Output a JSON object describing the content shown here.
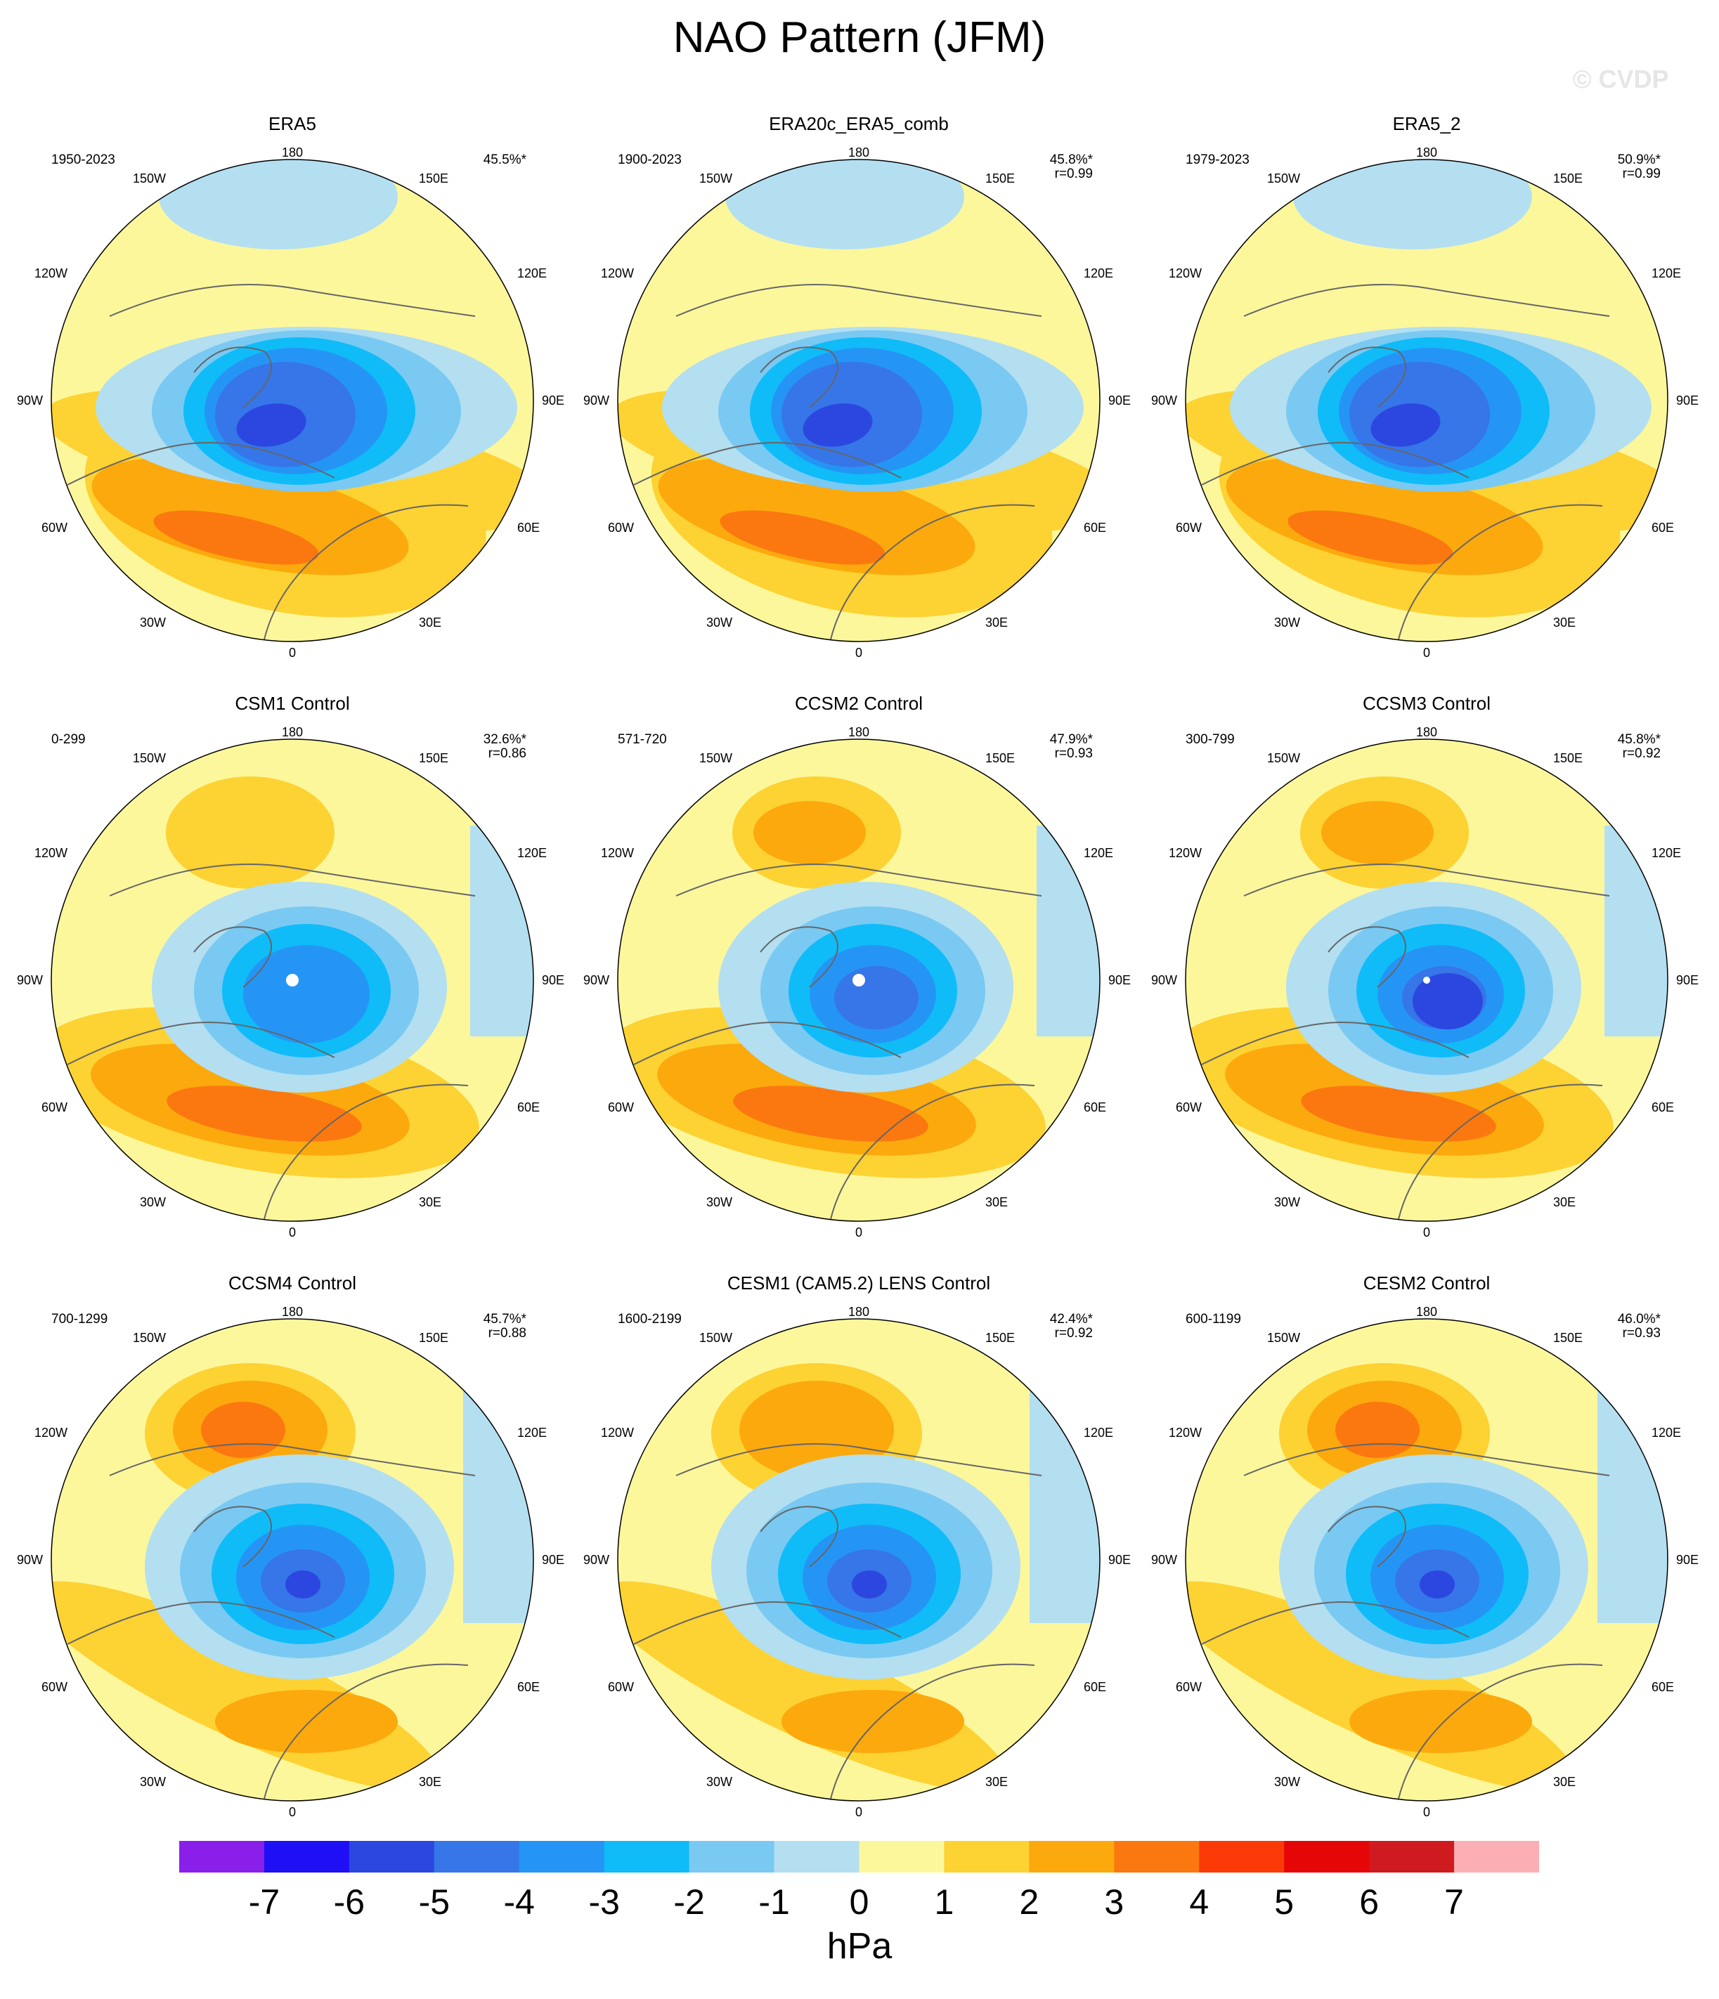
{
  "figure": {
    "title": "NAO Pattern (JFM)",
    "copyright": "© CVDP",
    "units": "hPa"
  },
  "colors": {
    "land_outline": "#666666",
    "circle_edge": "#000000",
    "dot": "#ffffff"
  },
  "lon_labels": {
    "top": "180",
    "bottom": "0",
    "left": "90W",
    "right": "90E",
    "upper_left_1": "150W",
    "upper_left_2": "120W",
    "lower_left_1": "60W",
    "lower_left_2": "30W",
    "upper_right_1": "150E",
    "upper_right_2": "120E",
    "lower_right_1": "60E",
    "lower_right_2": "30E"
  },
  "panels": [
    {
      "title": "ERA5",
      "years": "1950-2023",
      "pct": "45.5%*",
      "r": "",
      "variant": 0
    },
    {
      "title": "ERA20c_ERA5_comb",
      "years": "1900-2023",
      "pct": "45.8%*",
      "r": "r=0.99",
      "variant": 0
    },
    {
      "title": "ERA5_2",
      "years": "1979-2023",
      "pct": "50.9%*",
      "r": "r=0.99",
      "variant": 0
    },
    {
      "title": "CSM1 Control",
      "years": "0-299",
      "pct": "32.6%*",
      "r": "r=0.86",
      "variant": 1
    },
    {
      "title": "CCSM2 Control",
      "years": "571-720",
      "pct": "47.9%*",
      "r": "r=0.93",
      "variant": 1
    },
    {
      "title": "CCSM3 Control",
      "years": "300-799",
      "pct": "45.8%*",
      "r": "r=0.92",
      "variant": 1
    },
    {
      "title": "CCSM4 Control",
      "years": "700-1299",
      "pct": "45.7%*",
      "r": "r=0.88",
      "variant": 2
    },
    {
      "title": "CESM1 (CAM5.2) LENS Control",
      "years": "1600-2199",
      "pct": "42.4%*",
      "r": "r=0.92",
      "variant": 2
    },
    {
      "title": "CESM2 Control",
      "years": "600-1199",
      "pct": "46.0%*",
      "r": "r=0.93",
      "variant": 2
    }
  ],
  "colorbar": {
    "colors": [
      "#8a1fea",
      "#1e0ff5",
      "#2c47e0",
      "#3676e8",
      "#2595f5",
      "#0fbcf8",
      "#7ac9f2",
      "#b3dff1",
      "#fdf79c",
      "#fdd233",
      "#fca90d",
      "#fb7810",
      "#fb3a08",
      "#e50608",
      "#cf1b1f",
      "#fbafb4"
    ],
    "labels": [
      "-7",
      "-6",
      "-5",
      "-4",
      "-3",
      "-2",
      "-1",
      "0",
      "1",
      "2",
      "3",
      "4",
      "5",
      "6",
      "7"
    ]
  }
}
